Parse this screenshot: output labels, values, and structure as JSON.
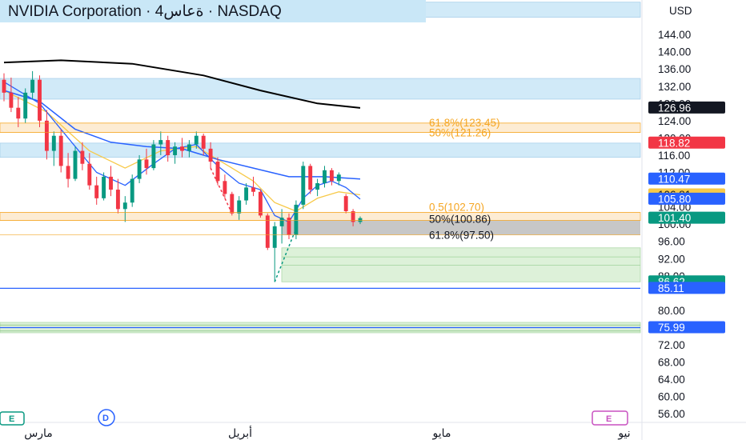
{
  "header": {
    "title": "NVIDIA Corporation · 4ةعاس · NASDAQ",
    "currency": "USD"
  },
  "colors": {
    "up": "#089981",
    "down": "#f23645",
    "ema_fast": "#2962ff",
    "ema_slow": "#f7c948",
    "sma_long": "#000000",
    "fib": "#f5a623",
    "zone_blue": "#c9e7f7",
    "zone_green": "#d8efd3",
    "gray_box": "#bdbdbd",
    "support_line": "#2962ff"
  },
  "chart_data": {
    "type": "candlestick",
    "title": "NVIDIA Corporation · 4ةعاس · NASDAQ",
    "y_axis": {
      "unit": "USD",
      "range": [
        54,
        152
      ],
      "ticks": [
        144.0,
        140.0,
        136.0,
        132.0,
        128.0,
        124.0,
        120.0,
        116.0,
        112.0,
        104.0,
        100.0,
        96.0,
        92.0,
        88.0,
        80.0,
        76.0,
        72.0,
        68.0,
        64.0,
        60.0,
        56.0
      ],
      "tick_labels": [
        "144.00",
        "140.00",
        "136.00",
        "132.00",
        "128.00",
        "124.00",
        "120.00",
        "116.00",
        "112.00",
        "104.00",
        "100.00",
        "96.00",
        "92.00",
        "88.00",
        "80.00",
        "76.00",
        "72.00",
        "68.00",
        "64.00",
        "60.00",
        "56.00"
      ]
    },
    "x_axis": {
      "months": [
        "مارس",
        "أبريل",
        "مايو",
        "يونيو"
      ],
      "month_labels": [
        "مارس",
        "أبريل",
        "مايو",
        "نيو"
      ]
    },
    "candles": [
      [
        133.5,
        135.0,
        128.5,
        130.5
      ],
      [
        130.5,
        134.0,
        126.0,
        127.0
      ],
      [
        127.0,
        129.5,
        122.5,
        124.5
      ],
      [
        124.5,
        131.5,
        123.5,
        130.5
      ],
      [
        130.5,
        135.5,
        129.0,
        133.5
      ],
      [
        133.5,
        134.5,
        122.5,
        124.0
      ],
      [
        124.0,
        126.5,
        115.0,
        117.0
      ],
      [
        117.0,
        121.5,
        113.5,
        120.5
      ],
      [
        120.5,
        122.0,
        112.0,
        113.5
      ],
      [
        113.5,
        116.5,
        108.5,
        110.5
      ],
      [
        110.5,
        118.0,
        110.0,
        117.0
      ],
      [
        117.0,
        119.0,
        112.5,
        114.0
      ],
      [
        114.0,
        116.5,
        108.0,
        109.0
      ],
      [
        109.0,
        111.0,
        104.5,
        106.0
      ],
      [
        106.0,
        112.0,
        105.5,
        111.0
      ],
      [
        111.0,
        113.5,
        106.5,
        108.0
      ],
      [
        108.0,
        110.5,
        102.5,
        103.5
      ],
      [
        103.5,
        106.5,
        100.5,
        105.0
      ],
      [
        105.0,
        111.5,
        104.0,
        110.5
      ],
      [
        110.5,
        116.0,
        109.5,
        115.0
      ],
      [
        115.0,
        117.5,
        111.5,
        113.0
      ],
      [
        113.0,
        119.5,
        112.5,
        118.5
      ],
      [
        118.5,
        121.5,
        116.0,
        119.5
      ],
      [
        119.5,
        120.5,
        114.5,
        116.0
      ],
      [
        116.0,
        119.0,
        114.0,
        118.0
      ],
      [
        118.0,
        120.0,
        115.5,
        117.0
      ],
      [
        117.0,
        119.5,
        115.5,
        118.5
      ],
      [
        118.5,
        121.5,
        117.5,
        120.5
      ],
      [
        120.5,
        121.0,
        116.0,
        117.5
      ],
      [
        117.5,
        119.0,
        113.0,
        114.5
      ],
      [
        114.5,
        115.5,
        109.0,
        110.0
      ],
      [
        110.0,
        111.5,
        106.0,
        107.0
      ],
      [
        107.0,
        107.5,
        102.0,
        102.5
      ],
      [
        102.5,
        106.5,
        101.0,
        105.5
      ],
      [
        105.5,
        109.5,
        104.5,
        108.5
      ],
      [
        108.5,
        111.0,
        106.5,
        107.5
      ],
      [
        107.5,
        108.0,
        101.5,
        102.0
      ],
      [
        102.0,
        102.5,
        94.0,
        94.5
      ],
      [
        94.5,
        100.5,
        86.6,
        99.5
      ],
      [
        99.5,
        103.5,
        95.5,
        101.5
      ],
      [
        101.5,
        102.5,
        96.5,
        97.5
      ],
      [
        97.5,
        105.5,
        96.5,
        104.5
      ],
      [
        104.5,
        114.5,
        103.5,
        113.5
      ],
      [
        113.5,
        114.0,
        107.0,
        108.0
      ],
      [
        108.0,
        110.5,
        106.5,
        109.5
      ],
      [
        109.5,
        113.5,
        108.5,
        112.5
      ],
      [
        112.5,
        113.0,
        109.0,
        110.0
      ],
      [
        110.0,
        112.0,
        109.0,
        111.5
      ],
      [
        106.5,
        107.0,
        102.5,
        103.0
      ],
      [
        103.0,
        103.5,
        99.5,
        100.5
      ],
      [
        100.5,
        101.8,
        100.0,
        101.4
      ]
    ],
    "ema_fast": [
      [
        0,
        131.0
      ],
      [
        5,
        128.5
      ],
      [
        10,
        122.0
      ],
      [
        15,
        119.0
      ],
      [
        20,
        118.0
      ],
      [
        25,
        117.5
      ],
      [
        30,
        115.0
      ],
      [
        35,
        113.0
      ],
      [
        40,
        111.0
      ],
      [
        45,
        111.0
      ],
      [
        50,
        110.47
      ]
    ],
    "ema_mid": [
      [
        0,
        133.0
      ],
      [
        5,
        128.0
      ],
      [
        10,
        118.0
      ],
      [
        13,
        112.0
      ],
      [
        17,
        109.0
      ],
      [
        21,
        114.0
      ],
      [
        24,
        117.5
      ],
      [
        27,
        118.5
      ],
      [
        30,
        113.5
      ],
      [
        33,
        109.5
      ],
      [
        36,
        108.0
      ],
      [
        38,
        102.0
      ],
      [
        40,
        100.5
      ],
      [
        42,
        106.0
      ],
      [
        44,
        109.0
      ],
      [
        46,
        110.0
      ],
      [
        48,
        108.5
      ],
      [
        50,
        105.8
      ]
    ],
    "ema_slow": [
      [
        0,
        131.0
      ],
      [
        6,
        126.0
      ],
      [
        12,
        117.0
      ],
      [
        17,
        113.0
      ],
      [
        22,
        117.0
      ],
      [
        27,
        118.0
      ],
      [
        31,
        114.0
      ],
      [
        35,
        110.0
      ],
      [
        38,
        105.0
      ],
      [
        41,
        103.0
      ],
      [
        44,
        106.0
      ],
      [
        47,
        107.5
      ],
      [
        50,
        106.81
      ]
    ],
    "sma_long": [
      [
        0,
        137.5
      ],
      [
        8,
        138.0
      ],
      [
        18,
        137.2
      ],
      [
        28,
        134.5
      ],
      [
        36,
        131.0
      ],
      [
        44,
        128.0
      ],
      [
        50,
        126.96
      ]
    ],
    "fib_levels": [
      {
        "label": "61.8%(123.45)",
        "value": 123.45
      },
      {
        "label": "50%(121.26)",
        "value": 121.26
      },
      {
        "label": "0.5(102.70)",
        "value": 102.7
      },
      {
        "label": "50%(100.86)",
        "value": 100.86
      },
      {
        "label": "61.8%(97.50)",
        "value": 97.5
      }
    ],
    "price_tags": [
      {
        "label": "126.96",
        "value": 126.96,
        "bg": "#131722",
        "fg": "#ffffff"
      },
      {
        "label": "118.82",
        "value": 118.82,
        "bg": "#f23645",
        "fg": "#ffffff"
      },
      {
        "label": "110.47",
        "value": 110.47,
        "bg": "#2962ff",
        "fg": "#ffffff"
      },
      {
        "label": "106.81",
        "value": 106.81,
        "bg": "#f7c948",
        "fg": "#131722"
      },
      {
        "label": "105.80",
        "value": 105.8,
        "bg": "#2962ff",
        "fg": "#ffffff"
      },
      {
        "label": "101.40",
        "value": 101.4,
        "bg": "#089981",
        "fg": "#ffffff"
      },
      {
        "label": "86.62",
        "value": 86.62,
        "bg": "#089981",
        "fg": "#ffffff"
      },
      {
        "label": "85.11",
        "value": 85.11,
        "bg": "#2962ff",
        "fg": "#ffffff"
      },
      {
        "label": "75.99",
        "value": 75.99,
        "bg": "#2962ff",
        "fg": "#ffffff"
      }
    ],
    "zones": [
      {
        "kind": "blue",
        "from": 148.0,
        "to": 151.5
      },
      {
        "kind": "blue",
        "from": 129.0,
        "to": 133.8
      },
      {
        "kind": "fib",
        "from": 121.26,
        "to": 123.45
      },
      {
        "kind": "blue",
        "from": 115.5,
        "to": 118.8
      },
      {
        "kind": "fib",
        "from": 100.86,
        "to": 102.7
      },
      {
        "kind": "green",
        "from": 86.62,
        "to": 94.5
      },
      {
        "kind": "green",
        "from": 74.8,
        "to": 77.2
      }
    ],
    "support_lines": [
      85.11,
      75.99
    ],
    "markers": [
      {
        "label": "E",
        "kind": "earnings"
      },
      {
        "label": "D",
        "kind": "dividend"
      },
      {
        "label": "E",
        "kind": "earnings"
      }
    ]
  }
}
